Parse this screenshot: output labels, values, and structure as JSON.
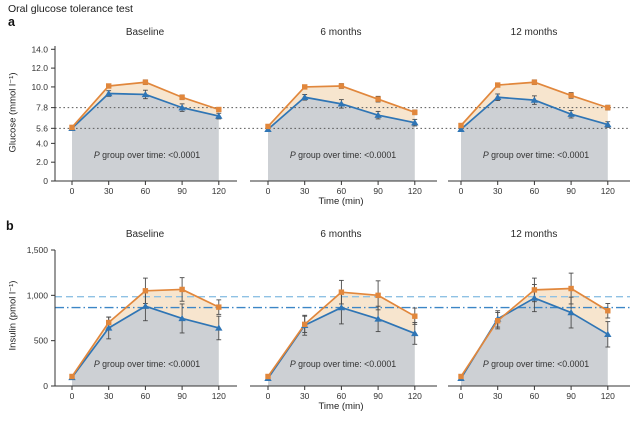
{
  "figure": {
    "title": "Oral glucose tolerance test",
    "row_a_label": "a",
    "row_b_label": "b"
  },
  "colors": {
    "orange_series": "#E1873C",
    "blue_series": "#2F75B5",
    "band_fill": "#F7E5CE",
    "under_fill": "#CDD0D4",
    "dotted_ref": "#5A5A5A",
    "dashed_ref": "#8FC1E4",
    "dashdot_ref": "#3C86C6",
    "error_bar": "#4A4A4A",
    "axis": "#333333"
  },
  "chart_data": [
    {
      "id": "glucose",
      "type": "line",
      "ylabel": "Glucose (mmol l⁻¹)",
      "xlabel": "Time (min)",
      "x": [
        0,
        30,
        60,
        90,
        120
      ],
      "xtick_labels": [
        "0",
        "30",
        "60",
        "90",
        "120"
      ],
      "ylim": [
        0,
        14.35
      ],
      "yticks": [
        14.0,
        12.0,
        10.0,
        7.8,
        5.6,
        4.0,
        2.0,
        0
      ],
      "ytick_labels": [
        "14.0",
        "12.0",
        "10.0",
        "7.8",
        "5.6",
        "4.0",
        "2.0",
        "0"
      ],
      "grid": false,
      "legend": "none",
      "ref_lines": [
        {
          "value": 7.8,
          "style": "dotted"
        },
        {
          "value": 5.6,
          "style": "dotted"
        }
      ],
      "annotation": {
        "prefix": "P",
        "text": " group over time: <0.0001"
      },
      "panels": [
        {
          "title": "Baseline",
          "series": [
            {
              "marker": "square",
              "color_key": "orange_series",
              "values": [
                5.7,
                10.1,
                10.5,
                8.9,
                7.6
              ],
              "err": [
                0.1,
                0.2,
                0.25,
                0.25,
                0.2
              ]
            },
            {
              "marker": "triangle",
              "color_key": "blue_series",
              "values": [
                5.6,
                9.3,
                9.2,
                7.8,
                6.9
              ],
              "err": [
                0.1,
                0.3,
                0.45,
                0.4,
                0.3
              ]
            }
          ]
        },
        {
          "title": "6 months",
          "series": [
            {
              "marker": "square",
              "color_key": "orange_series",
              "values": [
                5.8,
                10.0,
                10.1,
                8.7,
                7.3
              ],
              "err": [
                0.1,
                0.2,
                0.25,
                0.3,
                0.25
              ]
            },
            {
              "marker": "triangle",
              "color_key": "blue_series",
              "values": [
                5.5,
                8.9,
                8.2,
                7.0,
                6.2
              ],
              "err": [
                0.15,
                0.3,
                0.45,
                0.4,
                0.35
              ]
            }
          ]
        },
        {
          "title": "12 months",
          "series": [
            {
              "marker": "square",
              "color_key": "orange_series",
              "values": [
                5.9,
                10.2,
                10.5,
                9.1,
                7.8
              ],
              "err": [
                0.1,
                0.2,
                0.25,
                0.3,
                0.25
              ]
            },
            {
              "marker": "triangle",
              "color_key": "blue_series",
              "values": [
                5.5,
                8.9,
                8.6,
                7.1,
                6.0
              ],
              "err": [
                0.15,
                0.35,
                0.45,
                0.4,
                0.3
              ]
            }
          ]
        }
      ]
    },
    {
      "id": "insulin",
      "type": "line",
      "ylabel": "Insulin (pmol l⁻¹)",
      "xlabel": "Time (min)",
      "x": [
        0,
        30,
        60,
        90,
        120
      ],
      "xtick_labels": [
        "0",
        "30",
        "60",
        "90",
        "120"
      ],
      "ylim": [
        0,
        1500
      ],
      "yticks": [
        1500,
        1000,
        500,
        0
      ],
      "ytick_labels": [
        "1,500",
        "1,000",
        "500",
        "0"
      ],
      "grid": false,
      "legend": "none",
      "ref_lines": [
        {
          "value": 985,
          "style": "dashed"
        },
        {
          "value": 865,
          "style": "dashdot"
        }
      ],
      "annotation": {
        "prefix": "P",
        "text": " group over time: <0.0001"
      },
      "panels": [
        {
          "title": "Baseline",
          "series": [
            {
              "marker": "square",
              "color_key": "orange_series",
              "values": [
                105,
                700,
                1050,
                1065,
                870
              ],
              "err": [
                20,
                60,
                140,
                130,
                80
              ]
            },
            {
              "marker": "triangle",
              "color_key": "blue_series",
              "values": [
                95,
                640,
                880,
                745,
                640
              ],
              "err": [
                15,
                120,
                160,
                160,
                130
              ]
            }
          ]
        },
        {
          "title": "6 months",
          "series": [
            {
              "marker": "square",
              "color_key": "orange_series",
              "values": [
                105,
                680,
                1035,
                1000,
                770
              ],
              "err": [
                20,
                90,
                130,
                160,
                90
              ]
            },
            {
              "marker": "triangle",
              "color_key": "blue_series",
              "values": [
                85,
                670,
                865,
                740,
                580
              ],
              "err": [
                15,
                110,
                180,
                140,
                120
              ]
            }
          ]
        },
        {
          "title": "12 months",
          "series": [
            {
              "marker": "square",
              "color_key": "orange_series",
              "values": [
                105,
                720,
                1060,
                1075,
                830
              ],
              "err": [
                20,
                90,
                130,
                170,
                80
              ]
            },
            {
              "marker": "triangle",
              "color_key": "blue_series",
              "values": [
                85,
                740,
                970,
                810,
                570
              ],
              "err": [
                15,
                90,
                150,
                170,
                140
              ]
            }
          ]
        }
      ]
    }
  ]
}
